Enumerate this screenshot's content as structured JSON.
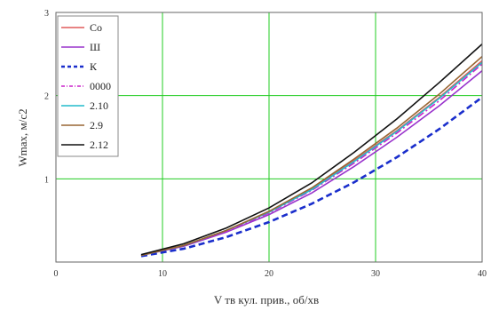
{
  "chart_data": {
    "type": "line",
    "xlabel": "V тв кул. прив., об/хв",
    "ylabel": "Wmax, м/с2",
    "xlim": [
      0,
      40
    ],
    "ylim": [
      0,
      3
    ],
    "x_ticks": [
      "0",
      "10",
      "20",
      "30",
      "40"
    ],
    "y_ticks": [
      "1",
      "2",
      "3"
    ],
    "grid": true,
    "grid_color": "#22cc22",
    "legend_position": "top-left",
    "x": [
      8,
      12,
      16,
      20,
      24,
      28,
      32,
      36,
      40
    ],
    "series": [
      {
        "name": "Со",
        "color": "#e05a5a",
        "dash": "solid",
        "values": [
          0.08,
          0.2,
          0.38,
          0.6,
          0.88,
          1.22,
          1.58,
          1.98,
          2.42
        ]
      },
      {
        "name": "Ш",
        "color": "#9933cc",
        "dash": "solid",
        "values": [
          0.08,
          0.19,
          0.36,
          0.57,
          0.83,
          1.15,
          1.5,
          1.88,
          2.3
        ]
      },
      {
        "name": "К",
        "color": "#1a2ecc",
        "dash": "dashed",
        "values": [
          0.07,
          0.16,
          0.3,
          0.48,
          0.7,
          0.96,
          1.26,
          1.6,
          1.98
        ]
      },
      {
        "name": "0000",
        "color": "#cc22cc",
        "dash": "dashdot",
        "values": [
          0.08,
          0.2,
          0.37,
          0.59,
          0.86,
          1.19,
          1.55,
          1.94,
          2.38
        ]
      },
      {
        "name": "2.10",
        "color": "#22bbcc",
        "dash": "solid",
        "values": [
          0.08,
          0.2,
          0.38,
          0.6,
          0.87,
          1.21,
          1.57,
          1.97,
          2.4
        ]
      },
      {
        "name": "2.9",
        "color": "#996633",
        "dash": "solid",
        "values": [
          0.08,
          0.2,
          0.38,
          0.61,
          0.89,
          1.24,
          1.61,
          2.02,
          2.47
        ]
      },
      {
        "name": "2.12",
        "color": "#111111",
        "dash": "solid",
        "values": [
          0.09,
          0.22,
          0.41,
          0.65,
          0.95,
          1.32,
          1.72,
          2.16,
          2.62
        ]
      }
    ]
  }
}
